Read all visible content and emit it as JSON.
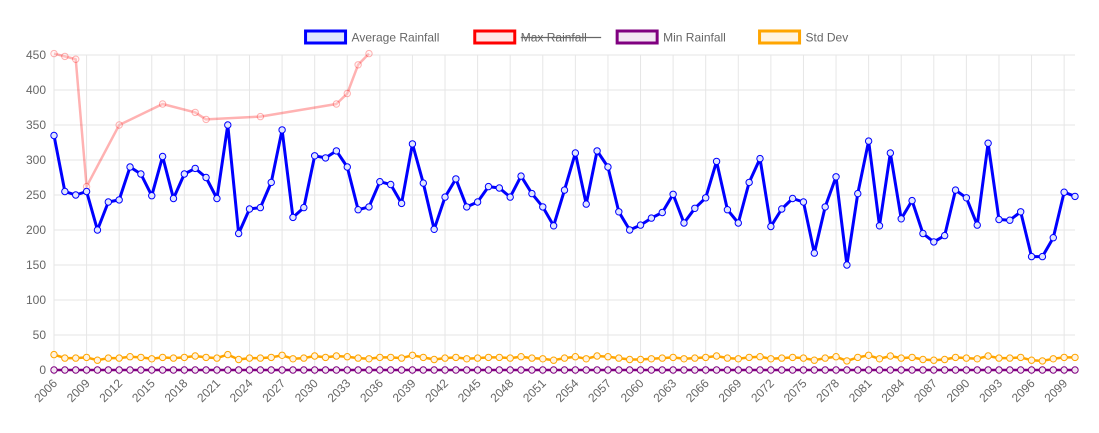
{
  "chart_data": {
    "type": "line",
    "x_start": 2006,
    "x_end": 2100,
    "x_tick_labels": [
      "2006",
      "2009",
      "2012",
      "2015",
      "2018",
      "2021",
      "2024",
      "2027",
      "2030",
      "2033",
      "2036",
      "2039",
      "2042",
      "2045",
      "2048",
      "2051",
      "2054",
      "2057",
      "2060",
      "2063",
      "2066",
      "2069",
      "2072",
      "2075",
      "2078",
      "2081",
      "2084",
      "2087",
      "2090",
      "2093",
      "2096",
      "2099"
    ],
    "ylim": [
      0,
      450
    ],
    "y_ticks": [
      0,
      50,
      100,
      150,
      200,
      250,
      300,
      350,
      400,
      450
    ],
    "grid": true,
    "legend_position": "top-center",
    "series": [
      {
        "name": "Average Rainfall",
        "color": "#0000ff",
        "fill": "#e0e6ff",
        "hidden": false,
        "values": [
          335,
          255,
          250,
          255,
          200,
          240,
          243,
          290,
          280,
          249,
          305,
          245,
          280,
          288,
          275,
          245,
          350,
          195,
          230,
          232,
          268,
          343,
          218,
          232,
          306,
          303,
          313,
          290,
          229,
          233,
          269,
          265,
          238,
          323,
          267,
          201,
          247,
          273,
          233,
          240,
          262,
          260,
          247,
          277,
          252,
          233,
          206,
          257,
          310,
          237,
          313,
          290,
          226,
          200,
          207,
          217,
          225,
          251,
          210,
          231,
          246,
          298,
          229,
          210,
          268,
          302,
          205,
          230,
          245,
          240,
          167,
          233,
          276,
          150,
          252,
          327,
          206,
          310,
          216,
          242,
          195,
          183,
          192,
          257,
          246,
          207,
          324,
          215,
          214,
          226,
          162,
          162,
          189,
          254,
          248
        ]
      },
      {
        "name": "Max Rainfall",
        "color": "#ff0000",
        "fill": "#ffe6e6",
        "hidden": true,
        "points": [
          {
            "x": 2006,
            "y": 452
          },
          {
            "x": 2007,
            "y": 448
          },
          {
            "x": 2008,
            "y": 444
          },
          {
            "x": 2009,
            "y": 262
          },
          {
            "x": 2012,
            "y": 350
          },
          {
            "x": 2016,
            "y": 380
          },
          {
            "x": 2019,
            "y": 368
          },
          {
            "x": 2020,
            "y": 358
          },
          {
            "x": 2025,
            "y": 362
          },
          {
            "x": 2032,
            "y": 380
          },
          {
            "x": 2033,
            "y": 395
          },
          {
            "x": 2034,
            "y": 436
          },
          {
            "x": 2035,
            "y": 452
          }
        ]
      },
      {
        "name": "Min Rainfall",
        "color": "#800080",
        "fill": "#f3e6f3",
        "hidden": false,
        "values": [
          0,
          0,
          0,
          0,
          0,
          0,
          0,
          0,
          0,
          0,
          0,
          0,
          0,
          0,
          0,
          0,
          0,
          0,
          0,
          0,
          0,
          0,
          0,
          0,
          0,
          0,
          0,
          0,
          0,
          0,
          0,
          0,
          0,
          0,
          0,
          0,
          0,
          0,
          0,
          0,
          0,
          0,
          0,
          0,
          0,
          0,
          0,
          0,
          0,
          0,
          0,
          0,
          0,
          0,
          0,
          0,
          0,
          0,
          0,
          0,
          0,
          0,
          0,
          0,
          0,
          0,
          0,
          0,
          0,
          0,
          0,
          0,
          0,
          0,
          0,
          0,
          0,
          0,
          0,
          0,
          0,
          0,
          0,
          0,
          0,
          0,
          0,
          0,
          0,
          0,
          0,
          0,
          0,
          0,
          0
        ]
      },
      {
        "name": "Std Dev",
        "color": "#ffa500",
        "fill": "#fff3e0",
        "hidden": false,
        "values": [
          22,
          17,
          17,
          18,
          14,
          17,
          17,
          19,
          18,
          16,
          18,
          17,
          18,
          20,
          18,
          17,
          22,
          15,
          17,
          17,
          18,
          21,
          16,
          17,
          20,
          18,
          20,
          19,
          17,
          16,
          18,
          18,
          17,
          21,
          18,
          15,
          17,
          18,
          16,
          17,
          18,
          18,
          17,
          19,
          17,
          16,
          14,
          17,
          19,
          16,
          20,
          19,
          17,
          15,
          15,
          16,
          17,
          18,
          16,
          17,
          18,
          20,
          17,
          16,
          18,
          19,
          16,
          17,
          18,
          17,
          14,
          17,
          19,
          13,
          18,
          21,
          16,
          20,
          17,
          18,
          15,
          14,
          15,
          18,
          17,
          16,
          20,
          17,
          17,
          18,
          14,
          13,
          16,
          18,
          18
        ]
      }
    ]
  }
}
